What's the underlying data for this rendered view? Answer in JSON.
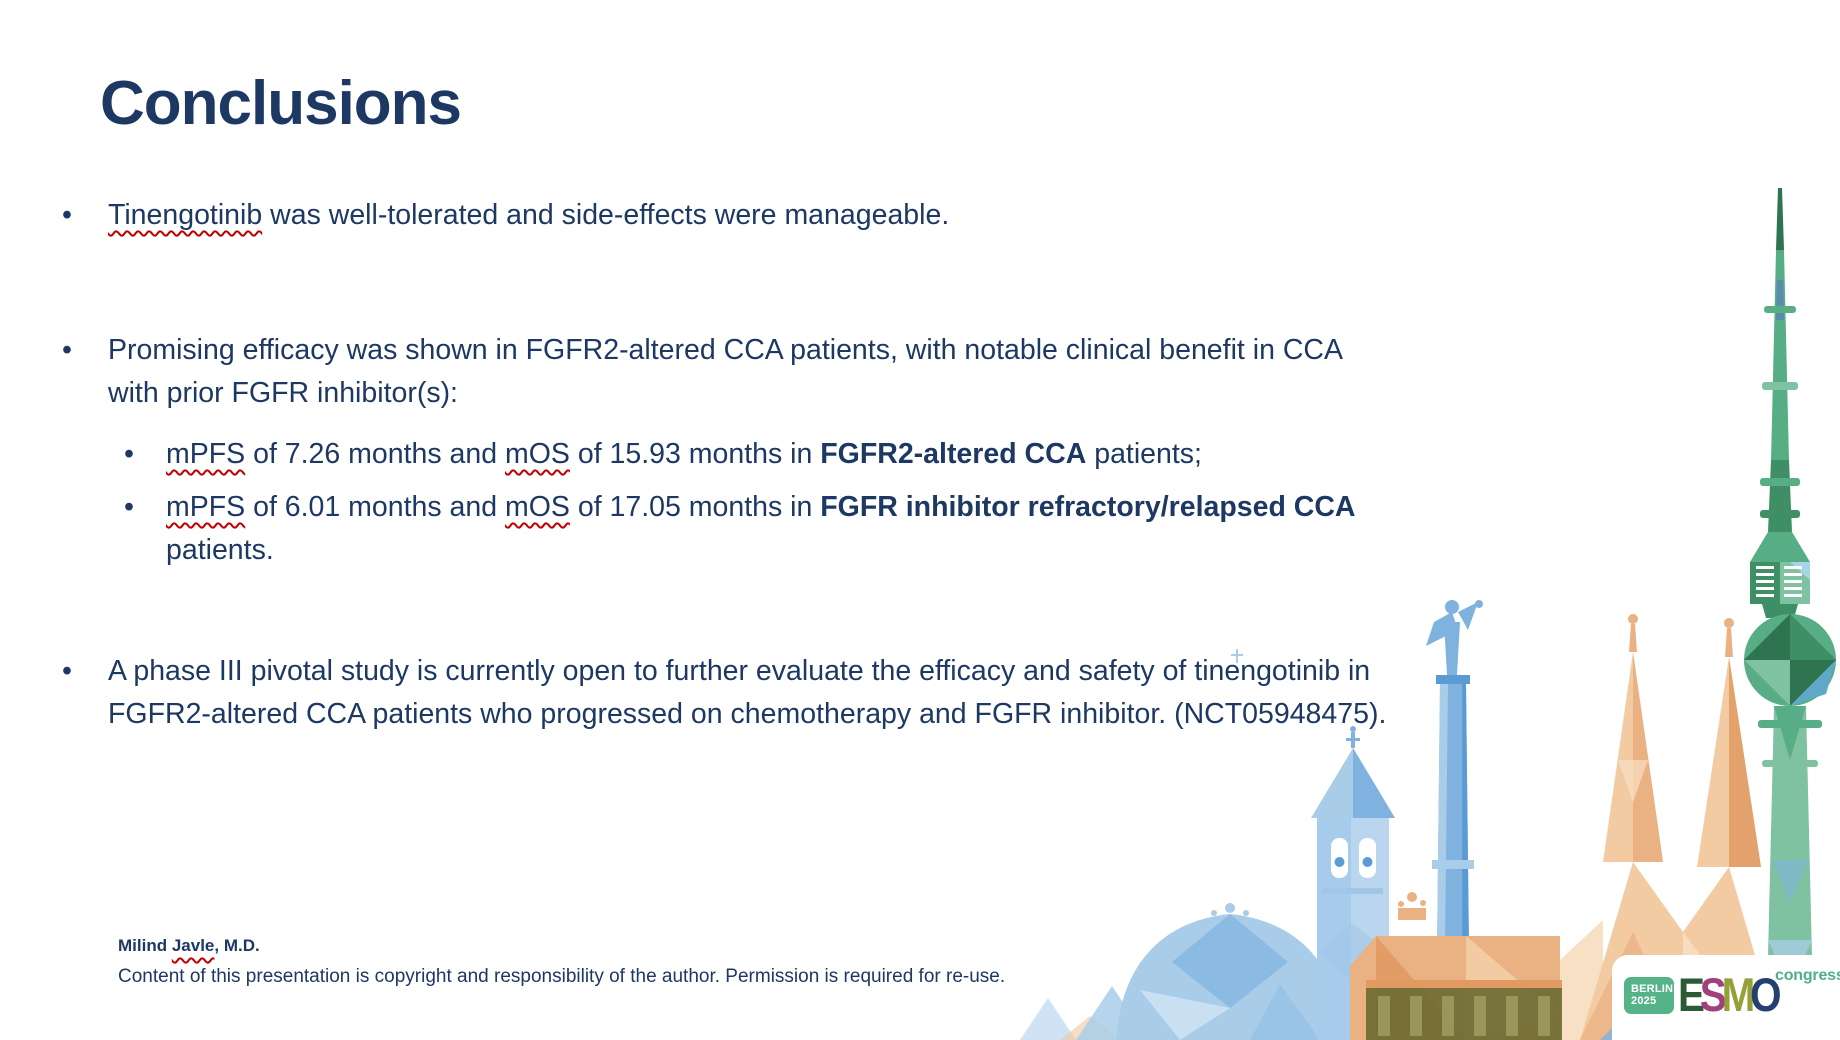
{
  "slide": {
    "title": "Conclusions",
    "bullets": [
      {
        "level": 1,
        "segments": [
          {
            "t": "Tinengotinib",
            "sq": true
          },
          {
            "t": " was well-tolerated and side-effects were manageable."
          }
        ]
      },
      {
        "level": 1,
        "segments": [
          {
            "t": "Promising efficacy was shown in FGFR2-altered CCA patients, with notable clinical benefit in CCA"
          },
          {
            "br": true
          },
          {
            "t": "with prior FGFR inhibitor(s):"
          }
        ]
      },
      {
        "level": 2,
        "segments": [
          {
            "t": "mPFS",
            "sq": true
          },
          {
            "t": " of 7.26 months and "
          },
          {
            "t": "mOS",
            "sq": true
          },
          {
            "t": " of 15.93 months in "
          },
          {
            "t": "FGFR2-altered CCA",
            "b": true
          },
          {
            "t": " patients;"
          }
        ]
      },
      {
        "level": 2,
        "segments": [
          {
            "t": "mPFS",
            "sq": true
          },
          {
            "t": " of 6.01 months and "
          },
          {
            "t": "mOS",
            "sq": true
          },
          {
            "t": " of 17.05 months in "
          },
          {
            "t": "FGFR inhibitor refractory/relapsed CCA",
            "b": true
          },
          {
            "br": true
          },
          {
            "t": "patients."
          }
        ]
      },
      {
        "level": 1,
        "segments": [
          {
            "t": "A phase III pivotal study is currently open to further evaluate the efficacy and safety of tinengotinib in"
          },
          {
            "br": true
          },
          {
            "t": "FGFR2-altered CCA patients who progressed on chemotherapy and FGFR inhibitor. (NCT05948475)."
          }
        ]
      }
    ],
    "footer": {
      "author_segments": [
        {
          "t": "Milind "
        },
        {
          "t": "Javle",
          "sq": true
        },
        {
          "t": ", M.D."
        }
      ],
      "copyright": "Content of this presentation is copyright and responsibility of the author. Permission is required for re-use."
    },
    "logo": {
      "city": "BERLIN",
      "year": "2025",
      "tag_bg": "#55b487",
      "letters": [
        {
          "ch": "E",
          "color": "#2c5a36"
        },
        {
          "ch": "S",
          "color": "#a2407d"
        },
        {
          "ch": "M",
          "color": "#95a038"
        },
        {
          "ch": "O",
          "color": "#23406f"
        }
      ],
      "congress": "congress",
      "congress_color": "#4fae8d"
    },
    "colors": {
      "text_navy": "#1d3862",
      "squiggle_red": "#c00000",
      "skyline_green": "#57ae85",
      "skyline_blue": "#7fb2de",
      "skyline_orange": "#eab183"
    },
    "graphic": "berlin-skyline"
  }
}
